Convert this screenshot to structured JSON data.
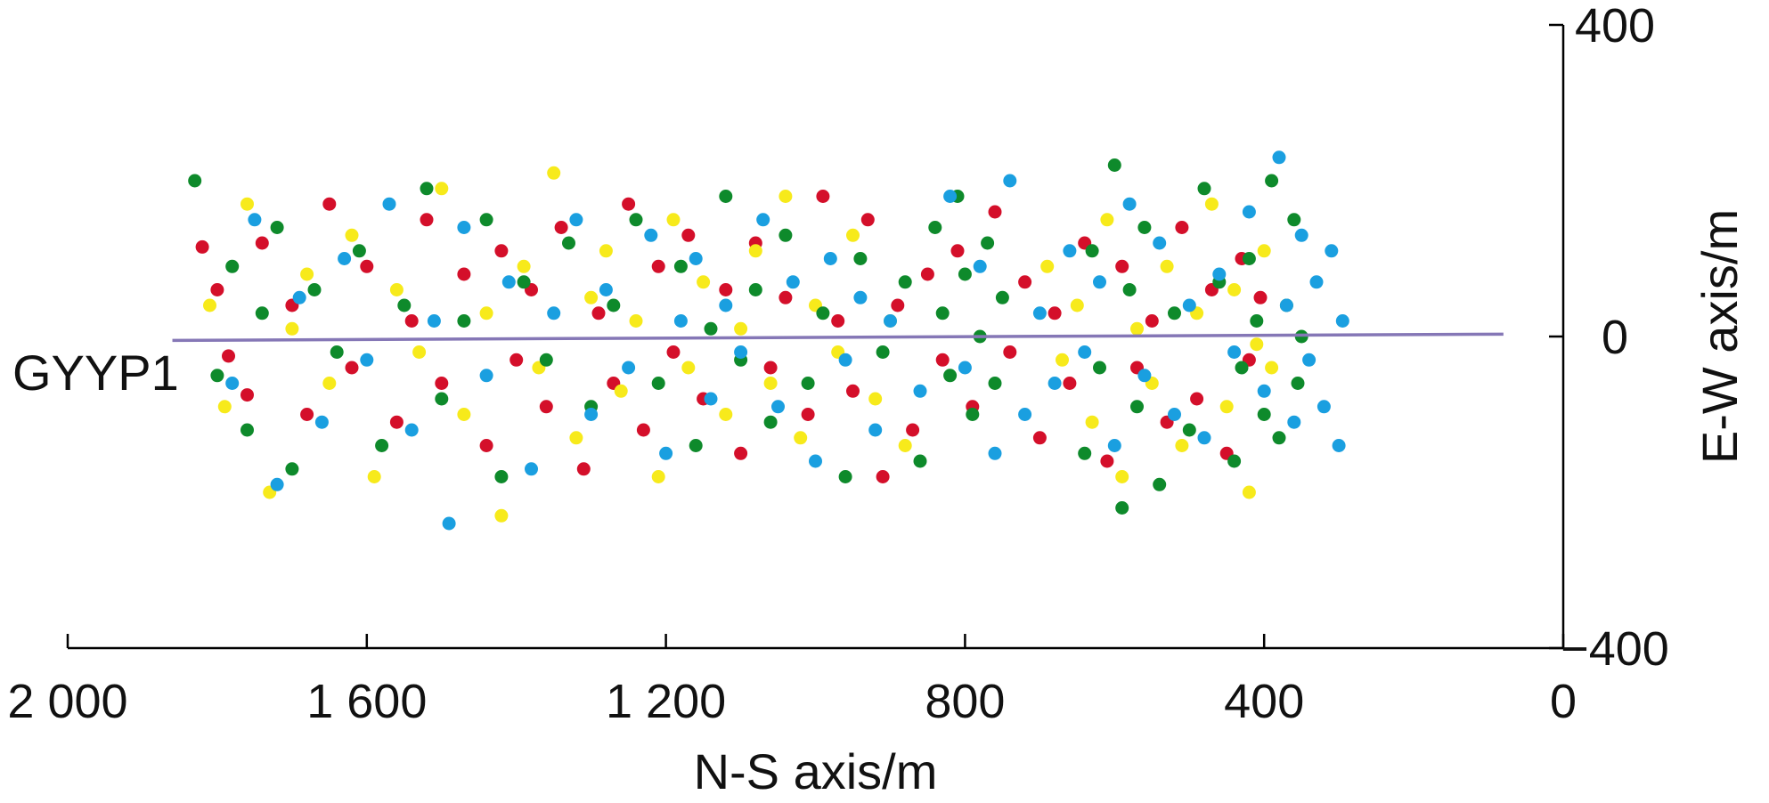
{
  "chart_data": {
    "type": "scatter",
    "title": "",
    "xlabel": "N-S axis/m",
    "ylabel": "E-W axis/m",
    "xlim": [
      2000,
      0
    ],
    "ylim": [
      -400,
      400
    ],
    "x_ticks": [
      2000,
      1600,
      1200,
      800,
      400,
      0
    ],
    "x_tick_labels": [
      "2 000",
      "1 600",
      "1 200",
      "800",
      "400",
      "0"
    ],
    "y_ticks": [
      400,
      0,
      -400
    ],
    "y_tick_labels": [
      "400",
      "0",
      "−400"
    ],
    "x_axis_position": "bottom",
    "y_axis_position": "right",
    "grid": false,
    "legend": "none",
    "colors": {
      "red": "#d40f2a",
      "yellow": "#f7ea1b",
      "green": "#0e8a2b",
      "blue": "#1a9fe0",
      "well": "#8577b6"
    },
    "well": {
      "label": "GYYP1",
      "x": [
        1860,
        80
      ],
      "y": [
        -5,
        3
      ]
    },
    "series": [
      {
        "color": "red",
        "points": [
          [
            1820,
            115
          ],
          [
            1800,
            60
          ],
          [
            1785,
            -25
          ],
          [
            1760,
            -75
          ],
          [
            1740,
            120
          ],
          [
            1700,
            40
          ],
          [
            1680,
            -100
          ],
          [
            1650,
            170
          ],
          [
            1620,
            -40
          ],
          [
            1600,
            90
          ],
          [
            1560,
            -110
          ],
          [
            1540,
            20
          ],
          [
            1520,
            150
          ],
          [
            1500,
            -60
          ],
          [
            1470,
            80
          ],
          [
            1440,
            -140
          ],
          [
            1420,
            110
          ],
          [
            1400,
            -30
          ],
          [
            1380,
            60
          ],
          [
            1360,
            -90
          ],
          [
            1340,
            140
          ],
          [
            1310,
            -170
          ],
          [
            1290,
            30
          ],
          [
            1270,
            -60
          ],
          [
            1250,
            170
          ],
          [
            1230,
            -120
          ],
          [
            1210,
            90
          ],
          [
            1190,
            -20
          ],
          [
            1170,
            130
          ],
          [
            1150,
            -80
          ],
          [
            1120,
            60
          ],
          [
            1100,
            -150
          ],
          [
            1080,
            120
          ],
          [
            1060,
            -40
          ],
          [
            1040,
            50
          ],
          [
            1010,
            -100
          ],
          [
            990,
            180
          ],
          [
            970,
            20
          ],
          [
            950,
            -70
          ],
          [
            930,
            150
          ],
          [
            910,
            -180
          ],
          [
            890,
            40
          ],
          [
            870,
            -120
          ],
          [
            850,
            80
          ],
          [
            830,
            -30
          ],
          [
            810,
            110
          ],
          [
            790,
            -90
          ],
          [
            760,
            160
          ],
          [
            740,
            -20
          ],
          [
            720,
            70
          ],
          [
            700,
            -130
          ],
          [
            680,
            30
          ],
          [
            660,
            -60
          ],
          [
            640,
            120
          ],
          [
            610,
            -160
          ],
          [
            590,
            90
          ],
          [
            570,
            -40
          ],
          [
            550,
            20
          ],
          [
            530,
            -110
          ],
          [
            510,
            140
          ],
          [
            490,
            -80
          ],
          [
            470,
            60
          ],
          [
            450,
            -150
          ],
          [
            430,
            100
          ],
          [
            420,
            -30
          ],
          [
            405,
            50
          ]
        ]
      },
      {
        "color": "yellow",
        "points": [
          [
            1810,
            40
          ],
          [
            1790,
            -90
          ],
          [
            1760,
            170
          ],
          [
            1730,
            -200
          ],
          [
            1700,
            10
          ],
          [
            1680,
            80
          ],
          [
            1650,
            -60
          ],
          [
            1620,
            130
          ],
          [
            1590,
            -180
          ],
          [
            1560,
            60
          ],
          [
            1530,
            -20
          ],
          [
            1500,
            190
          ],
          [
            1470,
            -100
          ],
          [
            1440,
            30
          ],
          [
            1420,
            -230
          ],
          [
            1390,
            90
          ],
          [
            1370,
            -40
          ],
          [
            1350,
            210
          ],
          [
            1320,
            -130
          ],
          [
            1300,
            50
          ],
          [
            1280,
            110
          ],
          [
            1260,
            -70
          ],
          [
            1240,
            20
          ],
          [
            1210,
            -180
          ],
          [
            1190,
            150
          ],
          [
            1170,
            -40
          ],
          [
            1150,
            70
          ],
          [
            1120,
            -100
          ],
          [
            1100,
            10
          ],
          [
            1080,
            110
          ],
          [
            1060,
            -60
          ],
          [
            1040,
            180
          ],
          [
            1020,
            -130
          ],
          [
            1000,
            40
          ],
          [
            970,
            -20
          ],
          [
            950,
            130
          ],
          [
            920,
            -80
          ],
          [
            900,
            20
          ],
          [
            880,
            -140
          ],
          [
            690,
            90
          ],
          [
            670,
            -30
          ],
          [
            650,
            40
          ],
          [
            630,
            -110
          ],
          [
            610,
            150
          ],
          [
            590,
            -180
          ],
          [
            570,
            10
          ],
          [
            550,
            -60
          ],
          [
            530,
            90
          ],
          [
            510,
            -140
          ],
          [
            490,
            30
          ],
          [
            470,
            170
          ],
          [
            450,
            -90
          ],
          [
            440,
            60
          ],
          [
            420,
            -200
          ],
          [
            410,
            -10
          ],
          [
            400,
            110
          ],
          [
            390,
            -40
          ]
        ]
      },
      {
        "color": "green",
        "points": [
          [
            1830,
            200
          ],
          [
            1800,
            -50
          ],
          [
            1780,
            90
          ],
          [
            1760,
            -120
          ],
          [
            1740,
            30
          ],
          [
            1720,
            140
          ],
          [
            1700,
            -170
          ],
          [
            1670,
            60
          ],
          [
            1640,
            -20
          ],
          [
            1610,
            110
          ],
          [
            1580,
            -140
          ],
          [
            1550,
            40
          ],
          [
            1520,
            190
          ],
          [
            1500,
            -80
          ],
          [
            1470,
            20
          ],
          [
            1440,
            150
          ],
          [
            1420,
            -180
          ],
          [
            1390,
            70
          ],
          [
            1360,
            -30
          ],
          [
            1330,
            120
          ],
          [
            1300,
            -90
          ],
          [
            1270,
            40
          ],
          [
            1240,
            150
          ],
          [
            1210,
            -60
          ],
          [
            1180,
            90
          ],
          [
            1160,
            -140
          ],
          [
            1140,
            10
          ],
          [
            1120,
            180
          ],
          [
            1100,
            -30
          ],
          [
            1080,
            60
          ],
          [
            1060,
            -110
          ],
          [
            1040,
            130
          ],
          [
            1010,
            -60
          ],
          [
            990,
            30
          ],
          [
            960,
            -180
          ],
          [
            940,
            100
          ],
          [
            910,
            -20
          ],
          [
            880,
            70
          ],
          [
            860,
            -160
          ],
          [
            840,
            140
          ],
          [
            830,
            30
          ],
          [
            820,
            -50
          ],
          [
            810,
            180
          ],
          [
            800,
            80
          ],
          [
            790,
            -100
          ],
          [
            780,
            0
          ],
          [
            770,
            120
          ],
          [
            760,
            -60
          ],
          [
            750,
            50
          ],
          [
            640,
            -150
          ],
          [
            630,
            110
          ],
          [
            620,
            -40
          ],
          [
            600,
            220
          ],
          [
            590,
            -220
          ],
          [
            580,
            60
          ],
          [
            570,
            -90
          ],
          [
            560,
            140
          ],
          [
            540,
            -190
          ],
          [
            520,
            30
          ],
          [
            500,
            -120
          ],
          [
            480,
            190
          ],
          [
            460,
            70
          ],
          [
            440,
            -160
          ],
          [
            430,
            -40
          ],
          [
            420,
            100
          ],
          [
            410,
            20
          ],
          [
            400,
            -100
          ],
          [
            390,
            200
          ],
          [
            380,
            -130
          ],
          [
            370,
            40
          ],
          [
            360,
            150
          ],
          [
            355,
            -60
          ],
          [
            350,
            0
          ]
        ]
      },
      {
        "color": "blue",
        "points": [
          [
            1780,
            -60
          ],
          [
            1750,
            150
          ],
          [
            1720,
            -190
          ],
          [
            1690,
            50
          ],
          [
            1660,
            -110
          ],
          [
            1630,
            100
          ],
          [
            1600,
            -30
          ],
          [
            1570,
            170
          ],
          [
            1540,
            -120
          ],
          [
            1510,
            20
          ],
          [
            1490,
            -240
          ],
          [
            1470,
            140
          ],
          [
            1440,
            -50
          ],
          [
            1410,
            70
          ],
          [
            1380,
            -170
          ],
          [
            1350,
            30
          ],
          [
            1320,
            150
          ],
          [
            1300,
            -100
          ],
          [
            1280,
            60
          ],
          [
            1250,
            -40
          ],
          [
            1220,
            130
          ],
          [
            1200,
            -150
          ],
          [
            1180,
            20
          ],
          [
            1160,
            100
          ],
          [
            1140,
            -80
          ],
          [
            1120,
            40
          ],
          [
            1100,
            -20
          ],
          [
            1070,
            150
          ],
          [
            1050,
            -90
          ],
          [
            1030,
            70
          ],
          [
            1000,
            -160
          ],
          [
            980,
            100
          ],
          [
            960,
            -30
          ],
          [
            940,
            50
          ],
          [
            920,
            -120
          ],
          [
            900,
            20
          ],
          [
            860,
            -70
          ],
          [
            820,
            180
          ],
          [
            800,
            -40
          ],
          [
            780,
            90
          ],
          [
            760,
            -150
          ],
          [
            740,
            200
          ],
          [
            720,
            -100
          ],
          [
            700,
            30
          ],
          [
            680,
            -60
          ],
          [
            660,
            110
          ],
          [
            640,
            -20
          ],
          [
            620,
            70
          ],
          [
            600,
            -140
          ],
          [
            580,
            170
          ],
          [
            560,
            -50
          ],
          [
            540,
            120
          ],
          [
            520,
            -100
          ],
          [
            500,
            40
          ],
          [
            480,
            -130
          ],
          [
            460,
            80
          ],
          [
            440,
            -20
          ],
          [
            420,
            160
          ],
          [
            400,
            -70
          ],
          [
            380,
            230
          ],
          [
            370,
            40
          ],
          [
            360,
            -110
          ],
          [
            350,
            130
          ],
          [
            340,
            -30
          ],
          [
            330,
            70
          ],
          [
            320,
            -90
          ],
          [
            310,
            110
          ],
          [
            300,
            -140
          ],
          [
            295,
            20
          ]
        ]
      }
    ]
  }
}
